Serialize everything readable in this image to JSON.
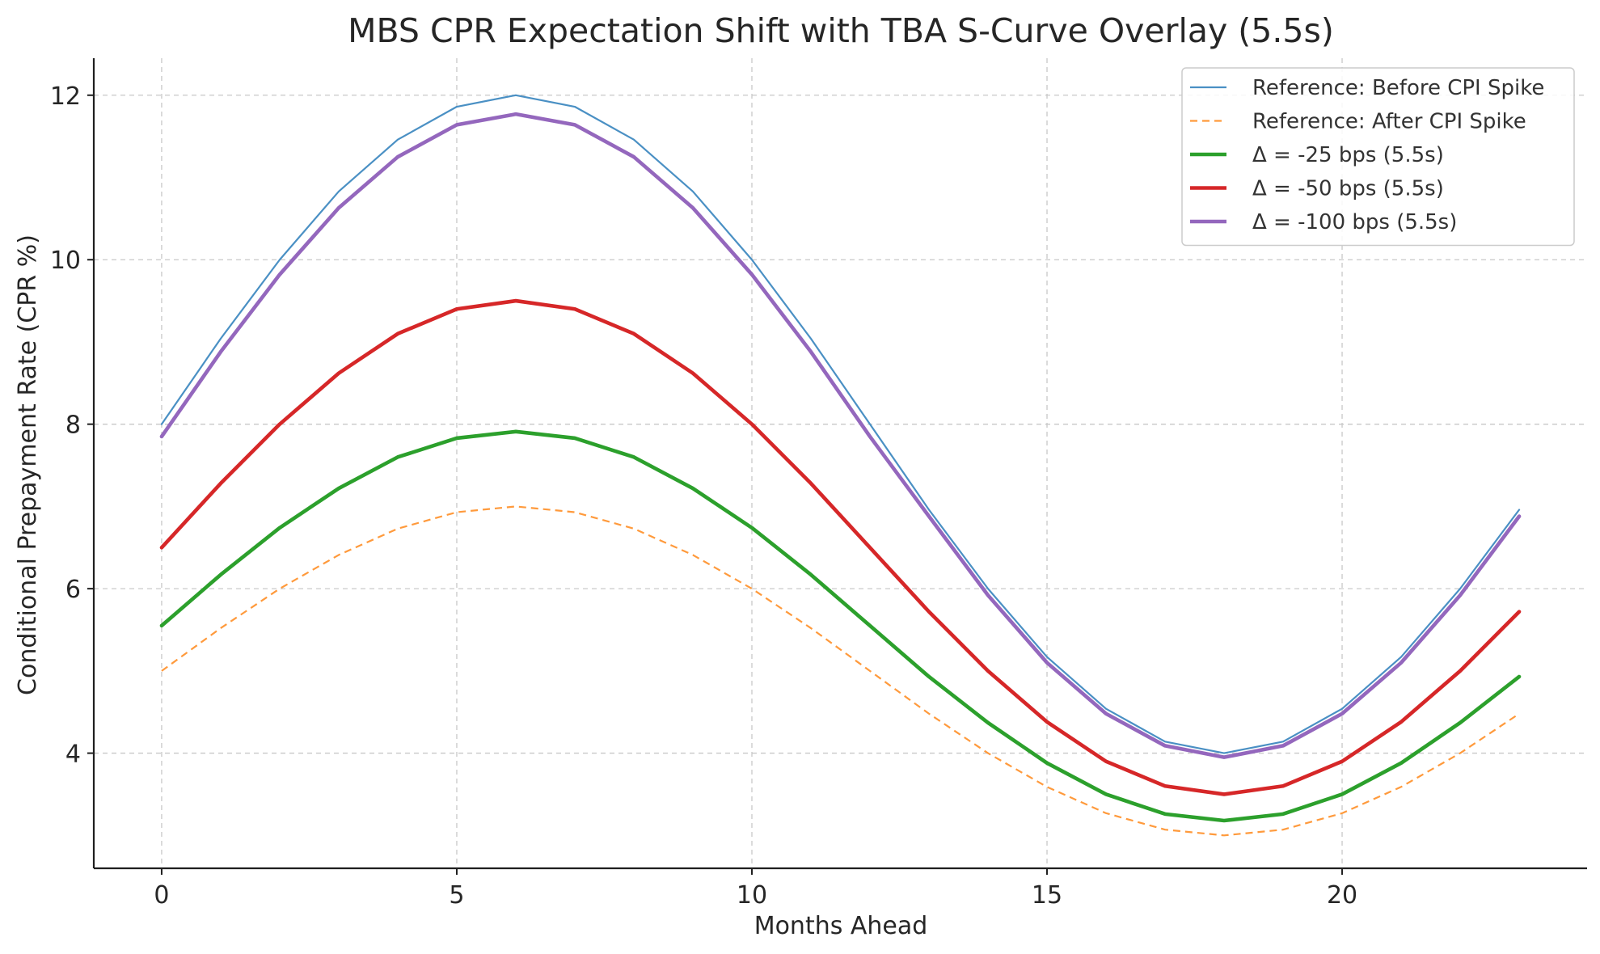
{
  "chart_data": {
    "type": "line",
    "title": "MBS CPR Expectation Shift with TBA S-Curve Overlay (5.5s)",
    "xlabel": "Months Ahead",
    "ylabel": "Conditional Prepayment Rate (CPR %)",
    "xlim": [
      -1.15,
      24.15
    ],
    "ylim": [
      2.6,
      12.45
    ],
    "xticks": [
      0,
      5,
      10,
      15,
      20
    ],
    "yticks": [
      4,
      6,
      8,
      10,
      12
    ],
    "grid": true,
    "legend_position": "top-right",
    "x": [
      0,
      1,
      2,
      3,
      4,
      5,
      6,
      7,
      8,
      9,
      10,
      11,
      12,
      13,
      14,
      15,
      16,
      17,
      18,
      19,
      20,
      21,
      22,
      23
    ],
    "series": [
      {
        "name": "Reference: Before CPI Spike",
        "color": "#4a90c4",
        "style": "solid",
        "width": "thin",
        "values": [
          8.0,
          9.04,
          10.0,
          10.83,
          11.46,
          11.86,
          12.0,
          11.86,
          11.46,
          10.83,
          10.0,
          9.04,
          8.0,
          6.96,
          6.0,
          5.17,
          4.54,
          4.14,
          4.0,
          4.14,
          4.54,
          5.17,
          6.0,
          6.96
        ]
      },
      {
        "name": "Reference: After CPI Spike",
        "color": "#ff9a3c",
        "style": "dashed",
        "width": "thin",
        "values": [
          5.0,
          5.52,
          6.0,
          6.41,
          6.73,
          6.93,
          7.0,
          6.93,
          6.73,
          6.41,
          6.0,
          5.52,
          5.0,
          4.48,
          4.0,
          3.59,
          3.27,
          3.07,
          3.0,
          3.07,
          3.27,
          3.59,
          4.0,
          4.48
        ]
      },
      {
        "name": "Δ = -25 bps (5.5s)",
        "color": "#2ca02c",
        "style": "solid",
        "width": "thick",
        "values": [
          5.55,
          6.17,
          6.74,
          7.22,
          7.6,
          7.83,
          7.91,
          7.83,
          7.6,
          7.22,
          6.74,
          6.17,
          5.55,
          4.93,
          4.37,
          3.88,
          3.5,
          3.26,
          3.18,
          3.26,
          3.5,
          3.88,
          4.37,
          4.93
        ]
      },
      {
        "name": "Δ = -50 bps (5.5s)",
        "color": "#d62728",
        "style": "solid",
        "width": "thick",
        "values": [
          6.5,
          7.28,
          8.0,
          8.62,
          9.1,
          9.4,
          9.5,
          9.4,
          9.1,
          8.62,
          8.0,
          7.28,
          6.5,
          5.72,
          5.0,
          4.38,
          3.9,
          3.6,
          3.5,
          3.6,
          3.9,
          4.38,
          5.0,
          5.72
        ]
      },
      {
        "name": "Δ = -100 bps (5.5s)",
        "color": "#9467bd",
        "style": "solid",
        "width": "thick",
        "values": [
          7.85,
          8.88,
          9.82,
          10.63,
          11.25,
          11.64,
          11.77,
          11.64,
          11.25,
          10.63,
          9.82,
          8.88,
          7.85,
          6.88,
          5.92,
          5.1,
          4.48,
          4.09,
          3.95,
          4.09,
          4.48,
          5.1,
          5.92,
          6.88
        ]
      }
    ]
  }
}
